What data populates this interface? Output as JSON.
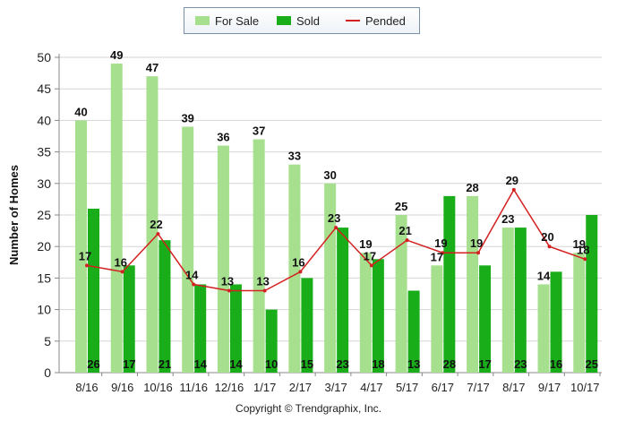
{
  "chart_data": {
    "type": "bar",
    "title": "",
    "xlabel": "",
    "ylabel": "Number of Homes",
    "ylim": [
      0,
      50
    ],
    "y_ticks": [
      0,
      5,
      10,
      15,
      20,
      25,
      30,
      35,
      40,
      45,
      50
    ],
    "grid": true,
    "legend_position": "top-center",
    "categories": [
      "8/16",
      "9/16",
      "10/16",
      "11/16",
      "12/16",
      "1/17",
      "2/17",
      "3/17",
      "4/17",
      "5/17",
      "6/17",
      "7/17",
      "8/17",
      "9/17",
      "10/17"
    ],
    "series": [
      {
        "name": "For Sale",
        "type": "bar",
        "color": "#a6e08e",
        "values": [
          40,
          49,
          47,
          39,
          36,
          37,
          33,
          30,
          19,
          25,
          17,
          28,
          23,
          14,
          19
        ]
      },
      {
        "name": "Sold",
        "type": "bar",
        "color": "#1aad1a",
        "values": [
          26,
          17,
          21,
          14,
          14,
          10,
          15,
          23,
          18,
          13,
          28,
          17,
          23,
          16,
          25
        ]
      },
      {
        "name": "Pended",
        "type": "line",
        "color": "#d42020",
        "values": [
          17,
          16,
          22,
          14,
          13,
          13,
          16,
          23,
          17,
          21,
          19,
          19,
          29,
          20,
          18
        ]
      }
    ]
  },
  "footer": {
    "copyright": "Copyright © Trendgraphix, Inc."
  }
}
